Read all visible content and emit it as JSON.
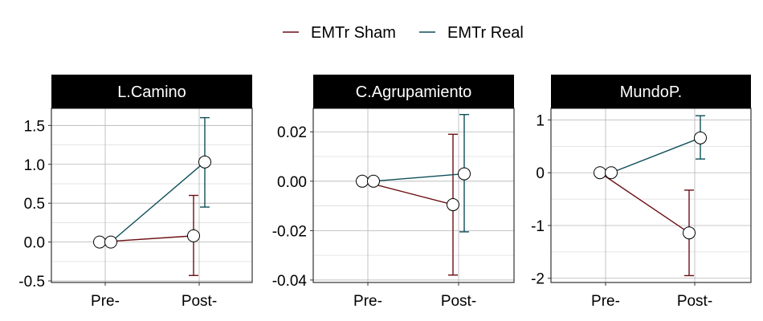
{
  "legend": {
    "items": [
      {
        "label": "EMTr Sham",
        "color": "#6b0f14"
      },
      {
        "label": "EMTr Real",
        "color": "#0f4f5a"
      }
    ]
  },
  "chart_data": [
    {
      "type": "line",
      "title": "L.Camino",
      "categories": [
        "Pre-",
        "Post-"
      ],
      "ylim": [
        -0.52,
        1.72
      ],
      "yticks": [
        -0.5,
        0.0,
        0.5,
        1.0,
        1.5
      ],
      "ytick_labels": [
        "-0.5",
        "0.0",
        "0.5",
        "1.0",
        "1.5"
      ],
      "grid": true,
      "series": [
        {
          "name": "EMTr Sham",
          "values": [
            0.0,
            0.08
          ],
          "err_low": [
            null,
            -0.43
          ],
          "err_high": [
            null,
            0.6
          ]
        },
        {
          "name": "EMTr Real",
          "values": [
            0.0,
            1.03
          ],
          "err_low": [
            null,
            0.45
          ],
          "err_high": [
            null,
            1.6
          ]
        }
      ]
    },
    {
      "type": "line",
      "title": "C.Agrupamiento",
      "categories": [
        "Pre-",
        "Post-"
      ],
      "ylim": [
        -0.041,
        0.0295
      ],
      "yticks": [
        -0.04,
        -0.02,
        0.0,
        0.02
      ],
      "ytick_labels": [
        "-0.04",
        "-0.02",
        "0.00",
        "0.02"
      ],
      "grid": true,
      "series": [
        {
          "name": "EMTr Sham",
          "values": [
            0.0,
            -0.0095
          ],
          "err_low": [
            null,
            -0.038
          ],
          "err_high": [
            null,
            0.019
          ]
        },
        {
          "name": "EMTr Real",
          "values": [
            0.0,
            0.003
          ],
          "err_low": [
            null,
            -0.0205
          ],
          "err_high": [
            null,
            0.027
          ]
        }
      ]
    },
    {
      "type": "line",
      "title": "MundoP.",
      "categories": [
        "Pre-",
        "Post-"
      ],
      "ylim": [
        -2.08,
        1.22
      ],
      "yticks": [
        -2,
        -1,
        0,
        1
      ],
      "ytick_labels": [
        "-2",
        "-1",
        "0",
        "1"
      ],
      "grid": true,
      "series": [
        {
          "name": "EMTr Sham",
          "values": [
            0.0,
            -1.14
          ],
          "err_low": [
            null,
            -1.95
          ],
          "err_high": [
            null,
            -0.33
          ]
        },
        {
          "name": "EMTr Real",
          "values": [
            0.0,
            0.66
          ],
          "err_low": [
            null,
            0.26
          ],
          "err_high": [
            null,
            1.08
          ]
        }
      ]
    }
  ]
}
